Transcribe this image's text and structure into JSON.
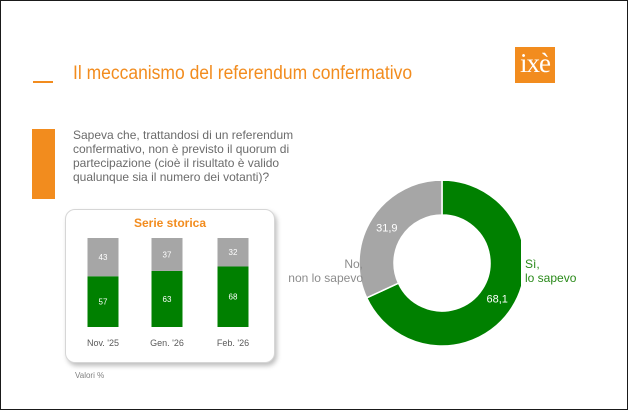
{
  "title": "Il meccanismo del referendum confermativo",
  "logo_text": "ixè",
  "question": "Sapeva che, trattandosi di un referendum confermativo, non è previsto il quorum di partecipazione (cioè il risultato è valido qualunque sia il numero dei votanti)?",
  "footnote": "Valori %",
  "colors": {
    "accent": "#f28c1e",
    "yes": "#008000",
    "no": "#a6a6a6"
  },
  "chart_data": [
    {
      "type": "bar",
      "stacked": true,
      "title": "Serie storica",
      "categories": [
        "Nov. '25",
        "Gen. '26",
        "Feb. '26"
      ],
      "series": [
        {
          "values": [
            57,
            63,
            68
          ],
          "labels": [
            "57",
            "63",
            "68"
          ],
          "color": "#008000"
        },
        {
          "values": [
            43,
            37,
            32
          ],
          "labels": [
            "43",
            "37",
            "32"
          ],
          "color": "#a6a6a6"
        }
      ],
      "ylim": [
        0,
        100
      ]
    },
    {
      "type": "pie",
      "donut": true,
      "slices": [
        {
          "name_line1": "Sì,",
          "name_line2": "lo sapevo",
          "value": 68.1,
          "label": "68,1",
          "color": "#008000"
        },
        {
          "name_line1": "No,",
          "name_line2": "non lo sapevo",
          "value": 31.9,
          "label": "31,9",
          "color": "#a6a6a6"
        }
      ]
    }
  ]
}
